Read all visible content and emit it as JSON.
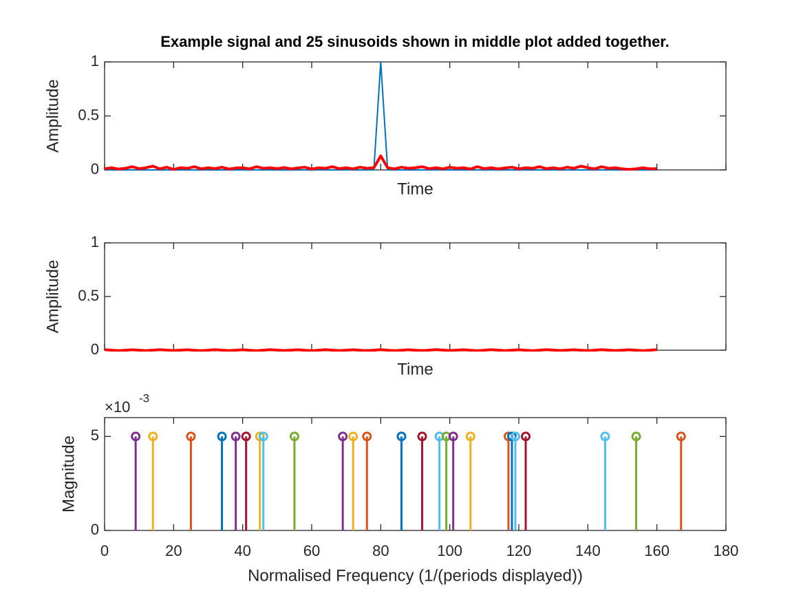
{
  "chart_data": [
    {
      "type": "line",
      "title": "Example signal and 25 sinusoids shown in middle plot added together.",
      "xlabel": "Time",
      "ylabel": "Amplitude",
      "xlim": [
        0,
        180
      ],
      "xticks": [
        0,
        20,
        40,
        60,
        80,
        100,
        120,
        140,
        160,
        180
      ],
      "show_xtick_labels": false,
      "ylim": [
        0,
        1
      ],
      "yticks": [
        0,
        0.5,
        1
      ],
      "x": [
        0,
        2,
        4,
        6,
        8,
        10,
        12,
        14,
        16,
        18,
        20,
        22,
        24,
        26,
        28,
        30,
        32,
        34,
        36,
        38,
        40,
        42,
        44,
        46,
        48,
        50,
        52,
        54,
        56,
        58,
        60,
        62,
        64,
        66,
        68,
        70,
        72,
        74,
        76,
        78,
        80,
        82,
        84,
        86,
        88,
        90,
        92,
        94,
        96,
        98,
        100,
        102,
        104,
        106,
        108,
        110,
        112,
        114,
        116,
        118,
        120,
        122,
        124,
        126,
        128,
        130,
        132,
        134,
        136,
        138,
        140,
        142,
        144,
        146,
        148,
        150,
        152,
        154,
        156,
        158,
        160
      ],
      "series": [
        {
          "color": "#0072bd",
          "width": 2,
          "values": [
            0,
            0,
            0,
            0,
            0,
            0,
            0,
            0,
            0,
            0,
            0,
            0,
            0,
            0,
            0,
            0,
            0,
            0,
            0,
            0,
            0,
            0,
            0,
            0,
            0,
            0,
            0,
            0,
            0,
            0,
            0,
            0,
            0,
            0,
            0,
            0,
            0,
            0,
            0,
            0,
            1,
            0,
            0,
            0,
            0,
            0,
            0,
            0,
            0,
            0,
            0,
            0,
            0,
            0,
            0,
            0,
            0,
            0,
            0,
            0,
            0,
            0,
            0,
            0,
            0,
            0,
            0,
            0,
            0,
            0,
            0,
            0,
            0,
            0,
            0,
            0,
            0,
            0,
            0,
            0,
            0
          ]
        },
        {
          "color": "#ff0000",
          "width": 4,
          "values": [
            0.01,
            0.02,
            0.008,
            0.015,
            0.03,
            0.012,
            0.02,
            0.035,
            0.01,
            0.025,
            0.005,
            0.02,
            0.015,
            0.03,
            0.01,
            0.02,
            0.012,
            0.025,
            0.008,
            0.018,
            0.02,
            0.01,
            0.03,
            0.015,
            0.02,
            0.012,
            0.022,
            0.01,
            0.018,
            0.025,
            0.008,
            0.02,
            0.015,
            0.03,
            0.012,
            0.02,
            0.01,
            0.025,
            0.015,
            0.02,
            0.13,
            0.02,
            0.01,
            0.025,
            0.015,
            0.02,
            0.03,
            0.012,
            0.02,
            0.01,
            0.025,
            0.015,
            0.02,
            0.008,
            0.03,
            0.012,
            0.02,
            0.01,
            0.018,
            0.025,
            0.01,
            0.02,
            0.015,
            0.03,
            0.012,
            0.02,
            0.01,
            0.025,
            0.015,
            0.035,
            0.02,
            0.01,
            0.03,
            0.015,
            0.02,
            0.01,
            0.005,
            0.01,
            0.02,
            0.01,
            0.012
          ]
        }
      ]
    },
    {
      "type": "line",
      "xlabel": "Time",
      "ylabel": "Amplitude",
      "xlim": [
        0,
        180
      ],
      "xticks": [
        0,
        20,
        40,
        60,
        80,
        100,
        120,
        140,
        160,
        180
      ],
      "show_xtick_labels": false,
      "ylim": [
        0,
        1
      ],
      "yticks": [
        0,
        0.5,
        1
      ],
      "x": [
        0,
        4,
        8,
        12,
        16,
        20,
        24,
        28,
        32,
        36,
        40,
        44,
        48,
        52,
        56,
        60,
        64,
        68,
        72,
        76,
        80,
        84,
        88,
        92,
        96,
        100,
        104,
        108,
        112,
        116,
        120,
        124,
        128,
        132,
        136,
        140,
        144,
        148,
        152,
        156,
        160
      ],
      "series": [
        {
          "color": "#0072bd",
          "width": 2,
          "values": [
            0.003,
            -0.002,
            0.004,
            -0.003,
            0.002,
            0.004,
            -0.002,
            0.003,
            -0.004,
            0.002,
            0.003,
            -0.003,
            0.004,
            -0.002,
            0.003,
            0.002,
            -0.004,
            0.003,
            -0.002,
            0.004,
            0.003,
            -0.003,
            0.002,
            0.004,
            -0.002,
            0.003,
            -0.004,
            0.002,
            0.003,
            -0.003,
            0.004,
            -0.002,
            0.003,
            0.002,
            -0.004,
            0.003,
            -0.002,
            0.004,
            0.003,
            -0.003,
            0.002
          ]
        },
        {
          "color": "#edb120",
          "width": 2,
          "values": [
            -0.002,
            0.004,
            -0.003,
            0.002,
            0.005,
            -0.002,
            0.003,
            -0.004,
            0.002,
            0.004,
            -0.003,
            0.002,
            -0.002,
            0.004,
            -0.003,
            0.002,
            0.005,
            -0.002,
            0.003,
            -0.004,
            0.002,
            0.004,
            -0.003,
            0.002,
            -0.002,
            0.004,
            -0.003,
            0.002,
            0.005,
            -0.002,
            0.003,
            -0.004,
            0.002,
            0.004,
            -0.003,
            0.002,
            -0.002,
            0.004,
            -0.003,
            0.002,
            0.003
          ]
        },
        {
          "color": "#ff0000",
          "width": 4,
          "values": [
            0.005,
            -0.005,
            0.004,
            -0.004,
            0.005,
            -0.003,
            0.004,
            -0.005,
            0.005,
            -0.004,
            0.004,
            -0.005,
            0.005,
            -0.003,
            0.004,
            -0.005,
            0.005,
            -0.004,
            0.004,
            -0.005,
            0.005,
            -0.005,
            0.004,
            -0.004,
            0.005,
            -0.003,
            0.004,
            -0.005,
            0.005,
            -0.004,
            0.004,
            -0.005,
            0.005,
            -0.003,
            0.004,
            -0.005,
            0.005,
            -0.004,
            0.004,
            -0.005,
            0.005
          ]
        }
      ]
    },
    {
      "type": "stem",
      "xlabel": "Normalised Frequency (1/(periods displayed))",
      "ylabel": "Magnitude",
      "y_exponent_base": "×10",
      "y_exponent": "-3",
      "xlim": [
        0,
        180
      ],
      "xticks": [
        0,
        20,
        40,
        60,
        80,
        100,
        120,
        140,
        160,
        180
      ],
      "show_xtick_labels": true,
      "ylim": [
        0,
        0.006
      ],
      "yticks": [
        0,
        {
          "value": 0.005,
          "label": "5"
        }
      ],
      "x": [
        9,
        14,
        25,
        34,
        38,
        41,
        45,
        46,
        55,
        69,
        72,
        76,
        86,
        92,
        97,
        99,
        101,
        106,
        117,
        118,
        119,
        122,
        145,
        154,
        167
      ],
      "values": [
        0.005,
        0.005,
        0.005,
        0.005,
        0.005,
        0.005,
        0.005,
        0.005,
        0.005,
        0.005,
        0.005,
        0.005,
        0.005,
        0.005,
        0.005,
        0.005,
        0.005,
        0.005,
        0.005,
        0.005,
        0.005,
        0.005,
        0.005,
        0.005,
        0.005
      ],
      "colors": [
        "#7e2f8e",
        "#edb120",
        "#d95319",
        "#0072bd",
        "#7e2f8e",
        "#a2142f",
        "#edb120",
        "#4dbeee",
        "#77ac30",
        "#7e2f8e",
        "#edb120",
        "#d95319",
        "#0072bd",
        "#a2142f",
        "#4dbeee",
        "#77ac30",
        "#7e2f8e",
        "#edb120",
        "#d95319",
        "#0072bd",
        "#4dbeee",
        "#a2142f",
        "#4dbeee",
        "#77ac30",
        "#d95319"
      ]
    }
  ]
}
